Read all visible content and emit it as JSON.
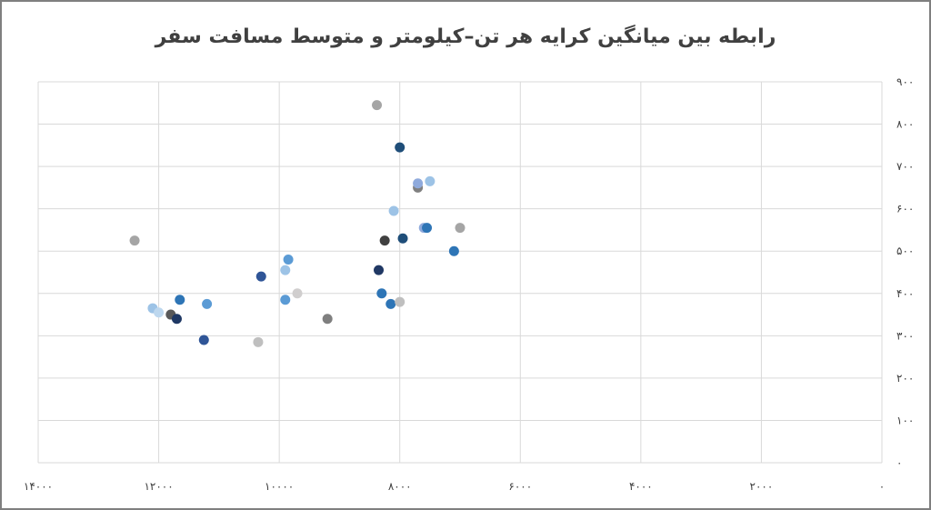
{
  "chart_data": {
    "type": "scatter",
    "title": "رابطه بین میانگین کرایه هر تن–کیلومتر و متوسط مسافت سفر",
    "xlabel": "",
    "ylabel": "",
    "x_reversed": true,
    "y_axis_side": "right",
    "xlim": [
      0,
      14000
    ],
    "ylim": [
      0,
      900
    ],
    "x_ticks": [
      0,
      2000,
      4000,
      6000,
      8000,
      10000,
      12000,
      14000
    ],
    "x_tick_labels": [
      "۰",
      "۲۰۰۰",
      "۴۰۰۰",
      "۶۰۰۰",
      "۸۰۰۰",
      "۱۰۰۰۰",
      "۱۲۰۰۰",
      "۱۴۰۰۰"
    ],
    "y_ticks": [
      0,
      100,
      200,
      300,
      400,
      500,
      600,
      700,
      800,
      900
    ],
    "y_tick_labels": [
      "۰",
      "۱۰۰",
      "۲۰۰",
      "۳۰۰",
      "۴۰۰",
      "۵۰۰",
      "۶۰۰",
      "۷۰۰",
      "۸۰۰",
      "۹۰۰"
    ],
    "grid": true,
    "legend": "none",
    "points": [
      {
        "x": 12400,
        "y": 525,
        "color": "#a5a5a5"
      },
      {
        "x": 12100,
        "y": 365,
        "color": "#9dc3e6"
      },
      {
        "x": 12000,
        "y": 355,
        "color": "#bdd7ee"
      },
      {
        "x": 11800,
        "y": 350,
        "color": "#595959"
      },
      {
        "x": 11700,
        "y": 340,
        "color": "#1f3864"
      },
      {
        "x": 11650,
        "y": 385,
        "color": "#2e75b6"
      },
      {
        "x": 11250,
        "y": 290,
        "color": "#2f5597"
      },
      {
        "x": 11200,
        "y": 375,
        "color": "#5b9bd5"
      },
      {
        "x": 10350,
        "y": 285,
        "color": "#bfbfbf"
      },
      {
        "x": 10300,
        "y": 440,
        "color": "#2f5597"
      },
      {
        "x": 9900,
        "y": 455,
        "color": "#9dc3e6"
      },
      {
        "x": 9850,
        "y": 480,
        "color": "#5b9bd5"
      },
      {
        "x": 9900,
        "y": 385,
        "color": "#5b9bd5"
      },
      {
        "x": 9700,
        "y": 400,
        "color": "#d0cece"
      },
      {
        "x": 9200,
        "y": 340,
        "color": "#7f7f7f"
      },
      {
        "x": 8380,
        "y": 845,
        "color": "#a5a5a5"
      },
      {
        "x": 8350,
        "y": 455,
        "color": "#203864"
      },
      {
        "x": 8300,
        "y": 400,
        "color": "#2e75b6"
      },
      {
        "x": 8250,
        "y": 525,
        "color": "#404040"
      },
      {
        "x": 8150,
        "y": 375,
        "color": "#2e75b6"
      },
      {
        "x": 8100,
        "y": 595,
        "color": "#9dc3e6"
      },
      {
        "x": 8000,
        "y": 745,
        "color": "#1f4e79"
      },
      {
        "x": 8000,
        "y": 380,
        "color": "#bfbfbf"
      },
      {
        "x": 7950,
        "y": 530,
        "color": "#1f4e79"
      },
      {
        "x": 7700,
        "y": 650,
        "color": "#808080"
      },
      {
        "x": 7700,
        "y": 660,
        "color": "#8faadc"
      },
      {
        "x": 7600,
        "y": 555,
        "color": "#8faadc"
      },
      {
        "x": 7550,
        "y": 555,
        "color": "#2e75b6"
      },
      {
        "x": 7500,
        "y": 665,
        "color": "#9dc3e6"
      },
      {
        "x": 7100,
        "y": 500,
        "color": "#2e75b6"
      },
      {
        "x": 7000,
        "y": 555,
        "color": "#a5a5a5"
      }
    ]
  }
}
